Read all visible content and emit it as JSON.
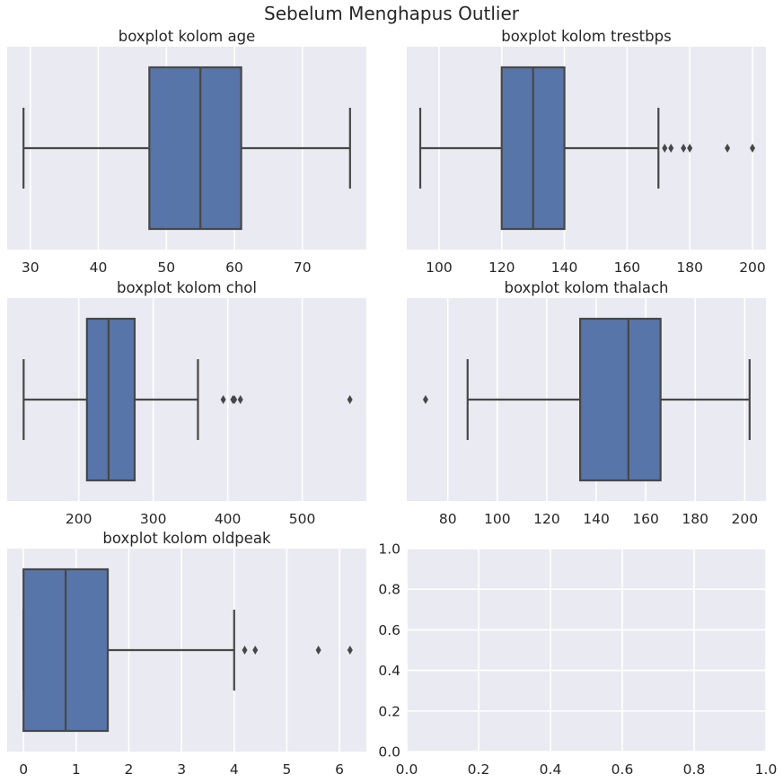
{
  "suptitle": "Sebelum Menghapus Outlier",
  "colors": {
    "axes_bg": "#EAEAF2",
    "grid": "#FFFFFF",
    "box_fill": "#5775A8",
    "line": "#474747",
    "text": "#262626"
  },
  "chart_data": [
    {
      "type": "boxplot",
      "title": "boxplot kolom age",
      "xlim": [
        26.6,
        79.4
      ],
      "xticks": [
        30,
        40,
        50,
        60,
        70
      ],
      "whisker_low": 29,
      "q1": 47.5,
      "median": 55,
      "q3": 61,
      "whisker_high": 77,
      "outliers": []
    },
    {
      "type": "boxplot",
      "title": "boxplot kolom trestbps",
      "xlim": [
        89.7,
        204.3
      ],
      "xticks": [
        100,
        120,
        140,
        160,
        180,
        200
      ],
      "whisker_low": 94,
      "q1": 120,
      "median": 130,
      "q3": 140,
      "whisker_high": 170,
      "outliers": [
        172,
        174,
        178,
        180,
        192,
        200
      ]
    },
    {
      "type": "boxplot",
      "title": "boxplot kolom chol",
      "xlim": [
        103.9,
        586.1
      ],
      "xticks": [
        200,
        300,
        400,
        500
      ],
      "whisker_low": 126,
      "q1": 211,
      "median": 240,
      "q3": 275,
      "whisker_high": 360,
      "outliers": [
        394,
        407,
        409,
        417,
        564
      ]
    },
    {
      "type": "boxplot",
      "title": "boxplot kolom thalach",
      "xlim": [
        63.4,
        208.6
      ],
      "xticks": [
        80,
        100,
        120,
        140,
        160,
        180,
        200
      ],
      "whisker_low": 88,
      "q1": 133.5,
      "median": 153,
      "q3": 166,
      "whisker_high": 202,
      "outliers": [
        71
      ]
    },
    {
      "type": "boxplot",
      "title": "boxplot kolom oldpeak",
      "xlim": [
        -0.31,
        6.51
      ],
      "xticks": [
        0,
        1,
        2,
        3,
        4,
        5,
        6
      ],
      "whisker_low": 0,
      "q1": 0,
      "median": 0.8,
      "q3": 1.6,
      "whisker_high": 4.0,
      "outliers": [
        4.2,
        4.4,
        5.6,
        6.2
      ]
    },
    {
      "type": "empty",
      "title": "",
      "xlim": [
        0,
        1
      ],
      "ylim": [
        0,
        1
      ],
      "xticks": [
        0.0,
        0.2,
        0.4,
        0.6,
        0.8,
        1.0
      ],
      "yticks": [
        0.0,
        0.2,
        0.4,
        0.6,
        0.8,
        1.0
      ],
      "grid": true
    }
  ]
}
